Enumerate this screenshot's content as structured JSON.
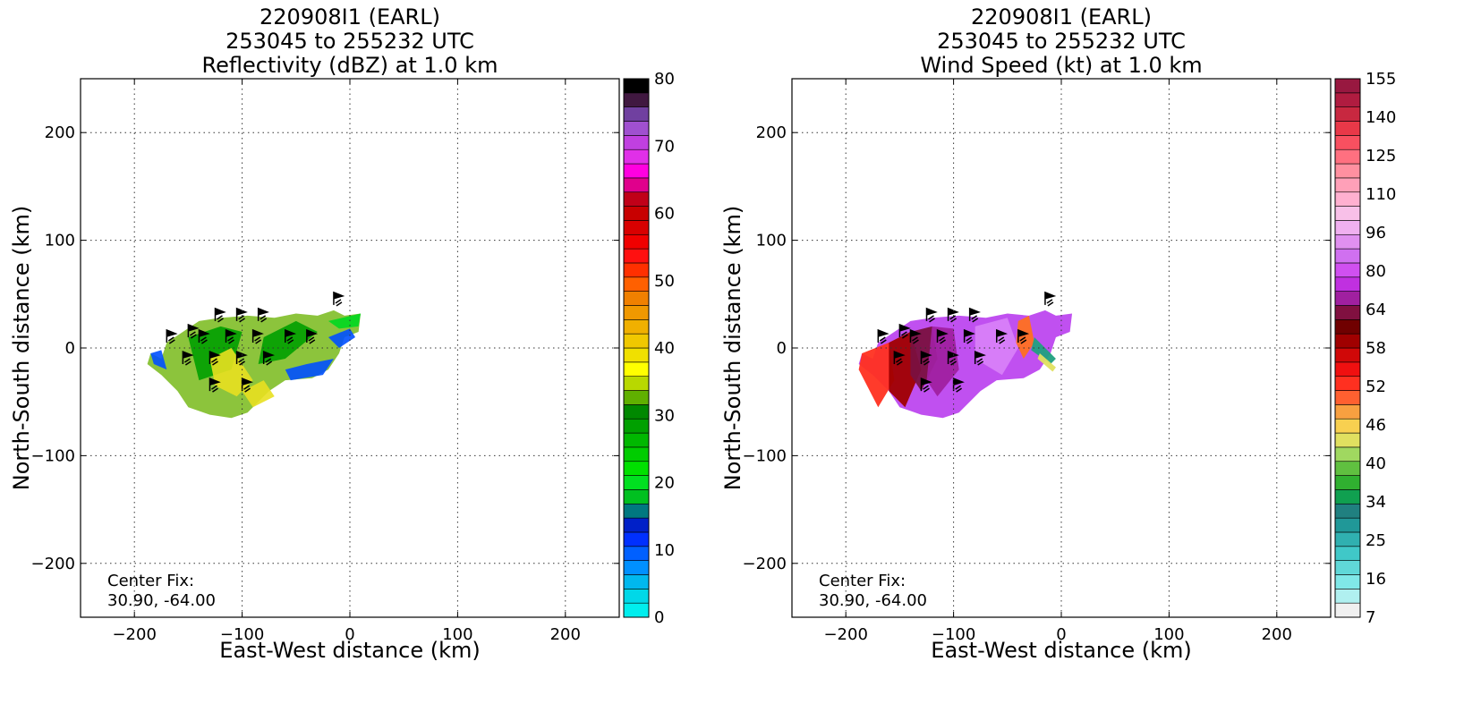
{
  "chart_data": [
    {
      "type": "heatmap",
      "title_lines": [
        "220908I1 (EARL)",
        "253045 to 255232 UTC",
        "Reflectivity (dBZ) at 1.0 km"
      ],
      "xlabel": "East-West distance (km)",
      "ylabel": "North-South distance (km)",
      "xlim": [
        -250,
        250
      ],
      "ylim": [
        -250,
        250
      ],
      "xticks": [
        -200,
        -100,
        0,
        100,
        200
      ],
      "yticks": [
        200,
        100,
        0,
        -100,
        -200
      ],
      "grid": true,
      "annotation": [
        "Center Fix:",
        "30.90, -64.00"
      ],
      "colorbar": {
        "min": 0,
        "max": 80,
        "tick_labels": [
          "80",
          "70",
          "60",
          "50",
          "40",
          "30",
          "20",
          "10",
          "0"
        ],
        "colors": [
          "#00eeee",
          "#00d8e8",
          "#00b8ee",
          "#0090ff",
          "#0060ff",
          "#0030ff",
          "#0020c8",
          "#007880",
          "#00c020",
          "#00e020",
          "#00e000",
          "#00cc00",
          "#00b800",
          "#00a000",
          "#008800",
          "#60b000",
          "#b8d800",
          "#ffff00",
          "#f0e000",
          "#f0c800",
          "#f0b000",
          "#f09800",
          "#f08000",
          "#ff6000",
          "#ff3000",
          "#ff1010",
          "#f00000",
          "#d80000",
          "#c80000",
          "#c00018",
          "#e0008c",
          "#ff00e0",
          "#e030e8",
          "#c040e0",
          "#a050d0",
          "#7040a0",
          "#401840",
          "#000000"
        ]
      },
      "region_description": "storm echo region roughly x -185 to 10 km, y -70 to 35 km"
    },
    {
      "type": "heatmap",
      "title_lines": [
        "220908I1 (EARL)",
        "253045 to 255232 UTC",
        "Wind Speed (kt) at 1.0 km"
      ],
      "xlabel": "East-West distance (km)",
      "ylabel": "North-South distance (km)",
      "xlim": [
        -250,
        250
      ],
      "ylim": [
        -250,
        250
      ],
      "xticks": [
        -200,
        -100,
        0,
        100,
        200
      ],
      "yticks": [
        200,
        100,
        0,
        -100,
        -200
      ],
      "grid": true,
      "annotation": [
        "Center Fix:",
        "30.90, -64.00"
      ],
      "colorbar": {
        "tick_labels": [
          "155",
          "140",
          "125",
          "110",
          "96",
          "80",
          "64",
          "58",
          "52",
          "46",
          "40",
          "34",
          "25",
          "16",
          "7"
        ],
        "colors": [
          "#f0f0f0",
          "#b0f0f0",
          "#80e8e8",
          "#60d8d8",
          "#40c8c8",
          "#30b0b0",
          "#209898",
          "#208080",
          "#10a050",
          "#30b030",
          "#60c040",
          "#a0d860",
          "#e0e060",
          "#f8d050",
          "#f8a040",
          "#ff6030",
          "#ff3020",
          "#f01010",
          "#d00808",
          "#a00000",
          "#700000",
          "#801040",
          "#a020a0",
          "#c030e0",
          "#d050f0",
          "#d070f0",
          "#e090f0",
          "#f0b0f0",
          "#f8c0e8",
          "#ffb0d0",
          "#ffa0b8",
          "#ff90a0",
          "#ff7080",
          "#f85060",
          "#e83848",
          "#c82840",
          "#b01c40",
          "#981840"
        ]
      }
    }
  ]
}
